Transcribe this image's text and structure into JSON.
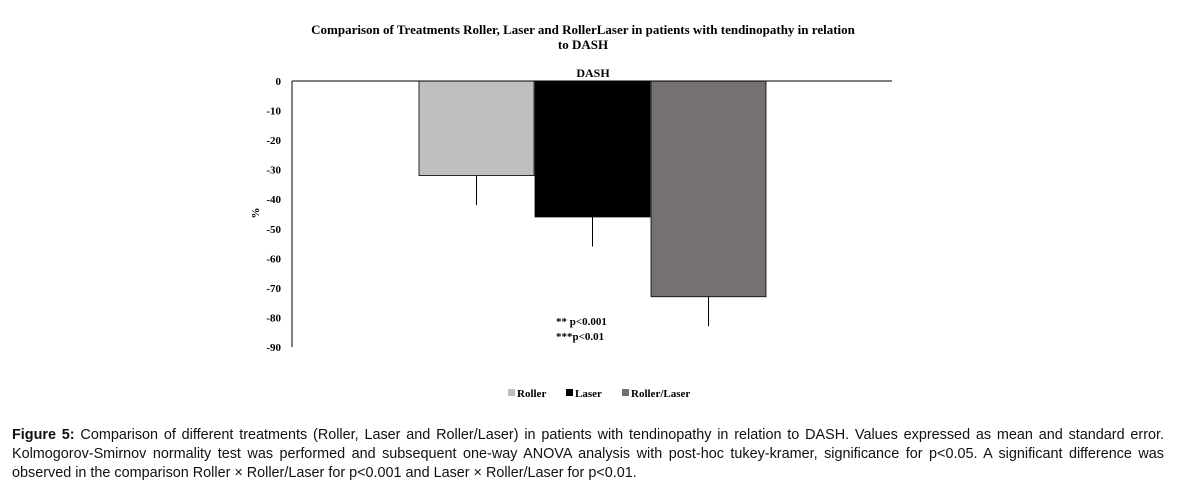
{
  "chart_data": {
    "type": "bar",
    "title": "Comparison of Treatments Roller, Laser and RollerLaser in patients with tendinopathy in relation to DASH",
    "subtitle": "DASH",
    "ylabel": "%",
    "xlabel": "",
    "ylim": [
      -90,
      0
    ],
    "yticks": [
      "0",
      "-10",
      "-20",
      "-30",
      "-40",
      "-50",
      "-60",
      "-70",
      "-80",
      "-90"
    ],
    "grid": false,
    "legend_position": "bottom",
    "series": [
      {
        "name": "Roller",
        "value": -32,
        "error": 10,
        "color": "#bfbfbf"
      },
      {
        "name": "Laser",
        "value": -46,
        "error": 10,
        "color": "#000000"
      },
      {
        "name": "Roller/Laser",
        "value": -73,
        "error": 10,
        "color": "#767171"
      }
    ],
    "annotations": [
      "** p<0.001",
      "***p<0.01"
    ]
  },
  "caption": {
    "label": "Figure 5:",
    "text": " Comparison of different treatments (Roller, Laser and Roller/Laser) in patients with tendinopathy in relation to DASH. Values expressed as mean and standard error. Kolmogorov-Smirnov normality test was performed and subsequent one-way ANOVA analysis with post-hoc tukey-kramer, significance for p<0.05. A significant difference was observed in the comparison Roller × Roller/Laser for p<0.001 and Laser × Roller/Laser for p<0.01."
  }
}
